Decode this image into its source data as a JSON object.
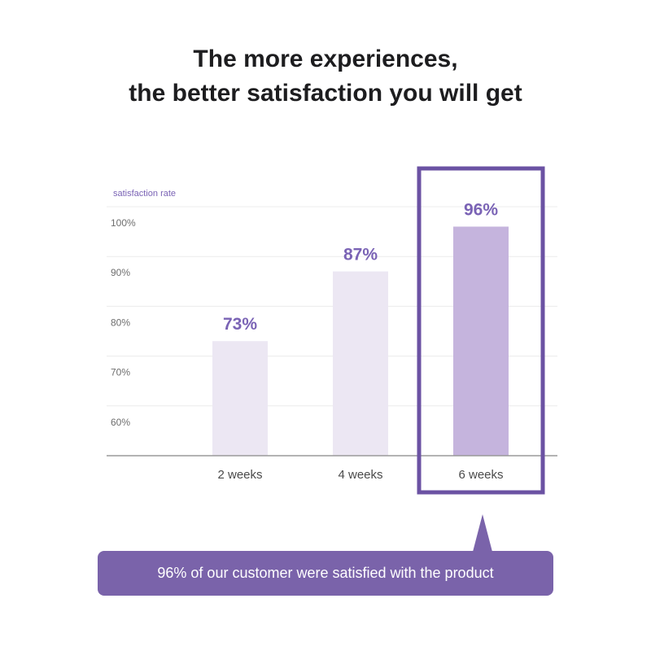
{
  "title": {
    "line1": "The more experiences,",
    "line2": "the better satisfaction you will get"
  },
  "chart_data": {
    "type": "bar",
    "ylabel": "satisfaction rate",
    "categories": [
      "2 weeks",
      "4 weeks",
      "6 weeks"
    ],
    "values": [
      73,
      87,
      96
    ],
    "value_labels": [
      "73%",
      "87%",
      "96%"
    ],
    "yticks": [
      60,
      70,
      80,
      90,
      100
    ],
    "ytick_labels": [
      "60%",
      "70%",
      "80%",
      "90%",
      "100%"
    ],
    "ylim": [
      50,
      100
    ],
    "grid": true,
    "highlight_category": "6 weeks",
    "colors": {
      "bar": "#ece7f3",
      "bar_highlight": "#c5b4dd",
      "accent": "#6b52a3",
      "label": "#7a63b5",
      "grid": "#ececec",
      "axis": "#9a9a9a"
    }
  },
  "callout": {
    "text": "96% of our customer were satisfied with the product"
  }
}
